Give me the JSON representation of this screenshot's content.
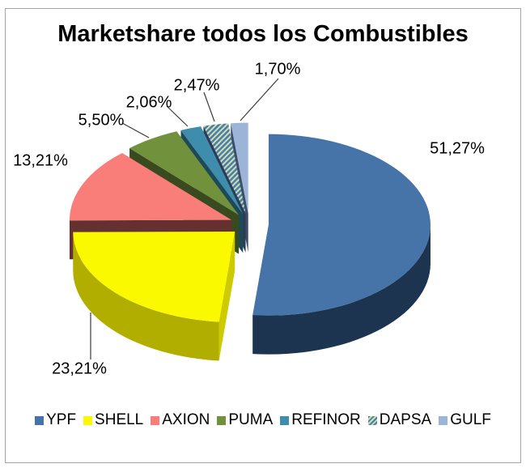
{
  "chart_data": {
    "type": "pie",
    "style": "3d-exploded",
    "title": "Marketshare todos los Combustibles",
    "unit": "%",
    "legend_position": "bottom",
    "series": [
      {
        "name": "YPF",
        "value": 51.27,
        "label": "51,27%",
        "color": "#4673a8",
        "side": "#1d3450",
        "cut": "#35587f"
      },
      {
        "name": "SHELL",
        "value": 23.21,
        "label": "23,21%",
        "color": "#fbf900",
        "side": "#b1ae00",
        "cut": "#cdca00"
      },
      {
        "name": "AXION",
        "value": 13.21,
        "label": "13,21%",
        "color": "#f97d78",
        "side": "#643130",
        "cut": "#643130"
      },
      {
        "name": "PUMA",
        "value": 5.5,
        "label": "5,50%",
        "color": "#71913d",
        "side": "#3a4a1f",
        "cut": "#3a4a1f"
      },
      {
        "name": "REFINOR",
        "value": 2.06,
        "label": "2,06%",
        "color": "#3f8dad",
        "side": "#1e4956",
        "cut": "#1e4956"
      },
      {
        "name": "DAPSA",
        "value": 2.47,
        "label": "2,47%",
        "color": "#4a7cb4",
        "pattern": {
          "bg": "#4a7cb4",
          "stripe": "#cfe0a4"
        },
        "side": "#2c3c54",
        "cut": "#2c3c54"
      },
      {
        "name": "GULF",
        "value": 1.7,
        "label": "1,70%",
        "color": "#9db4d9",
        "side": "#3f4e68",
        "cut": "#3f4e68"
      }
    ]
  }
}
